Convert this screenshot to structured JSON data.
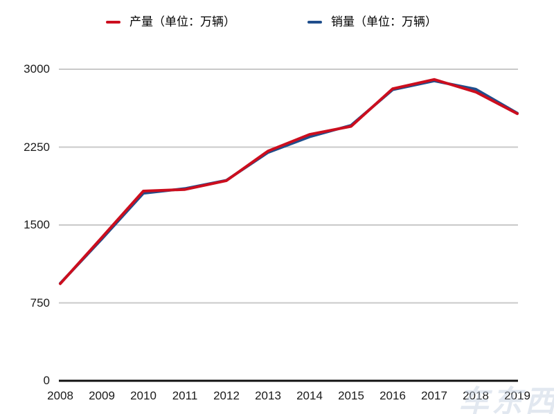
{
  "chart_data": {
    "type": "line",
    "title": "",
    "xlabel": "",
    "ylabel": "",
    "x": [
      2008,
      2009,
      2010,
      2011,
      2012,
      2013,
      2014,
      2015,
      2016,
      2017,
      2018,
      2019
    ],
    "series": [
      {
        "name": "产量（单位：万辆）",
        "color": "#cc0e1e",
        "values": [
          934.5,
          1379.1,
          1826.5,
          1841.9,
          1927.2,
          2211.7,
          2372.3,
          2450.3,
          2811.9,
          2901.5,
          2780.9,
          2572.1
        ]
      },
      {
        "name": "销量（单位：万辆）",
        "color": "#1f4e8c",
        "values": [
          938.1,
          1364.5,
          1806.2,
          1850.5,
          1930.6,
          2198.4,
          2349.2,
          2459.8,
          2802.8,
          2887.9,
          2808.1,
          2576.9
        ]
      }
    ],
    "y_ticks": [
      0,
      750,
      1500,
      2250,
      3000
    ],
    "ylim": [
      0,
      3000
    ],
    "grid": true,
    "legend_position": "top"
  },
  "style": {
    "grid_color": "#c9c9c9",
    "axis_color": "#111111",
    "tick_text_color": "#1a1a1a",
    "line_width": 4
  },
  "watermark": {
    "text": "车东西"
  }
}
